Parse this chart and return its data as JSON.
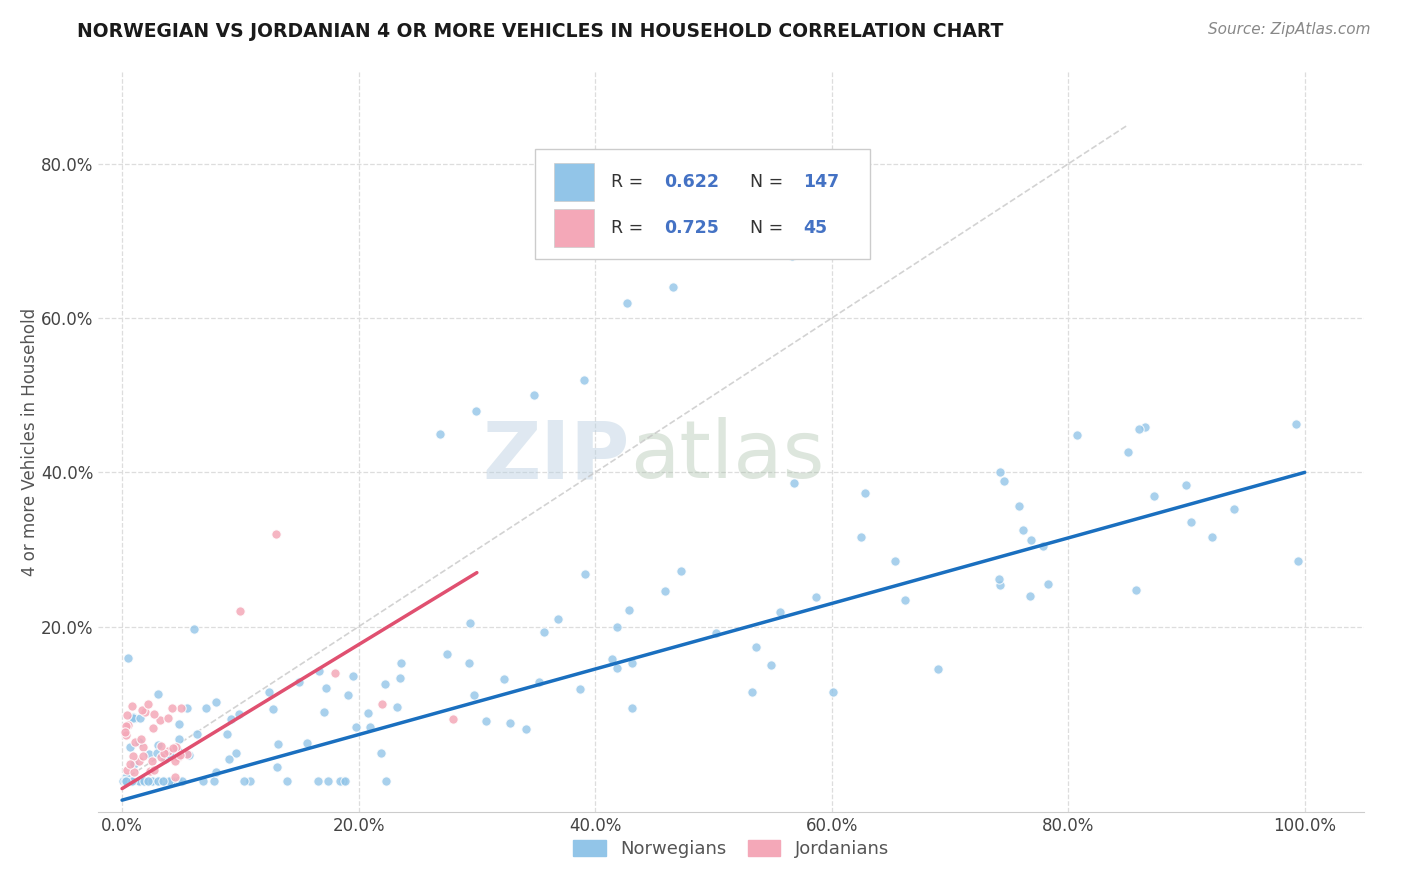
{
  "title": "NORWEGIAN VS JORDANIAN 4 OR MORE VEHICLES IN HOUSEHOLD CORRELATION CHART",
  "source": "Source: ZipAtlas.com",
  "ylabel": "4 or more Vehicles in Household",
  "xlim": [
    -0.02,
    1.05
  ],
  "ylim": [
    -0.04,
    0.92
  ],
  "xtick_labels": [
    "0.0%",
    "20.0%",
    "40.0%",
    "60.0%",
    "80.0%",
    "100.0%"
  ],
  "xtick_vals": [
    0.0,
    0.2,
    0.4,
    0.6,
    0.8,
    1.0
  ],
  "ytick_labels": [
    "20.0%",
    "40.0%",
    "60.0%",
    "80.0%"
  ],
  "ytick_vals": [
    0.2,
    0.4,
    0.6,
    0.8
  ],
  "legend_norwegian": "Norwegians",
  "legend_jordanian": "Jordanians",
  "norwegian_color": "#92C5E8",
  "jordanian_color": "#F4A8B8",
  "norwegian_line_color": "#1A6FBF",
  "jordanian_line_color": "#E05070",
  "R_norwegian": 0.622,
  "N_norwegian": 147,
  "R_jordanian": 0.725,
  "N_jordanian": 45,
  "watermark_zip": "ZIP",
  "watermark_atlas": "atlas",
  "background_color": "#FFFFFF",
  "grid_color": "#DDDDDD",
  "title_color": "#1A1A1A",
  "source_color": "#888888",
  "label_color": "#555555"
}
